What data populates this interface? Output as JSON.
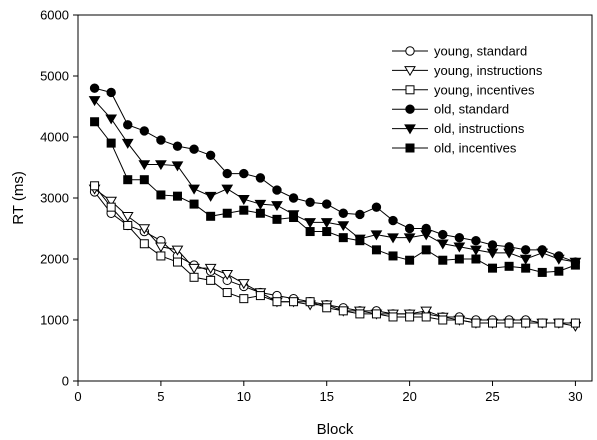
{
  "chart_data": {
    "type": "line",
    "xlabel": "Block",
    "ylabel": "RT (ms)",
    "xlim": [
      0,
      31
    ],
    "ylim": [
      0,
      6000
    ],
    "xticks": [
      "0",
      "5",
      "10",
      "15",
      "20",
      "25",
      "30"
    ],
    "yticks": [
      "0",
      "1000",
      "2000",
      "3000",
      "4000",
      "5000",
      "6000"
    ],
    "grid": false,
    "legend_position": "top-right",
    "x": [
      1,
      2,
      3,
      4,
      5,
      6,
      7,
      8,
      9,
      10,
      11,
      12,
      13,
      14,
      15,
      16,
      17,
      18,
      19,
      20,
      21,
      22,
      23,
      24,
      25,
      26,
      27,
      28,
      29,
      30
    ],
    "series": [
      {
        "name": "young, standard",
        "marker": "circle",
        "fill": "open",
        "values": [
          3100,
          2750,
          2550,
          2450,
          2300,
          2050,
          1900,
          1800,
          1650,
          1550,
          1450,
          1400,
          1350,
          1300,
          1250,
          1200,
          1150,
          1150,
          1100,
          1100,
          1100,
          1050,
          1050,
          1000,
          1000,
          1000,
          1000,
          950,
          950,
          950
        ]
      },
      {
        "name": "young, instructions",
        "marker": "triangle-down",
        "fill": "open",
        "values": [
          3150,
          2950,
          2700,
          2500,
          2200,
          2150,
          1850,
          1850,
          1750,
          1600,
          1450,
          1300,
          1300,
          1250,
          1250,
          1150,
          1150,
          1100,
          1100,
          1100,
          1150,
          1050,
          1000,
          950,
          950,
          950,
          950,
          950,
          950,
          900
        ]
      },
      {
        "name": "young, incentives",
        "marker": "square",
        "fill": "open",
        "values": [
          3200,
          2850,
          2550,
          2250,
          2050,
          1950,
          1700,
          1650,
          1450,
          1350,
          1400,
          1300,
          1300,
          1300,
          1200,
          1150,
          1100,
          1100,
          1050,
          1050,
          1050,
          1000,
          1000,
          950,
          950,
          950,
          950,
          950,
          950,
          950
        ]
      },
      {
        "name": "old, standard",
        "marker": "circle",
        "fill": "filled",
        "values": [
          4800,
          4730,
          4200,
          4100,
          3950,
          3850,
          3800,
          3700,
          3400,
          3400,
          3330,
          3130,
          3000,
          2930,
          2900,
          2750,
          2730,
          2850,
          2630,
          2500,
          2500,
          2400,
          2350,
          2300,
          2230,
          2200,
          2150,
          2150,
          2050,
          1950
        ]
      },
      {
        "name": "old, instructions",
        "marker": "triangle-down",
        "fill": "filled",
        "values": [
          4600,
          4300,
          3900,
          3550,
          3550,
          3530,
          3150,
          3030,
          3150,
          2980,
          2900,
          2880,
          2730,
          2600,
          2600,
          2550,
          2330,
          2400,
          2350,
          2350,
          2400,
          2250,
          2200,
          2150,
          2100,
          2100,
          2000,
          2100,
          2000,
          1950
        ]
      },
      {
        "name": "old, incentives",
        "marker": "square",
        "fill": "filled",
        "values": [
          4250,
          3900,
          3300,
          3300,
          3050,
          3030,
          2900,
          2700,
          2750,
          2800,
          2750,
          2650,
          2680,
          2450,
          2450,
          2350,
          2300,
          2150,
          2050,
          1980,
          2150,
          1980,
          2000,
          2000,
          1850,
          1880,
          1850,
          1780,
          1800,
          1900
        ]
      }
    ]
  }
}
